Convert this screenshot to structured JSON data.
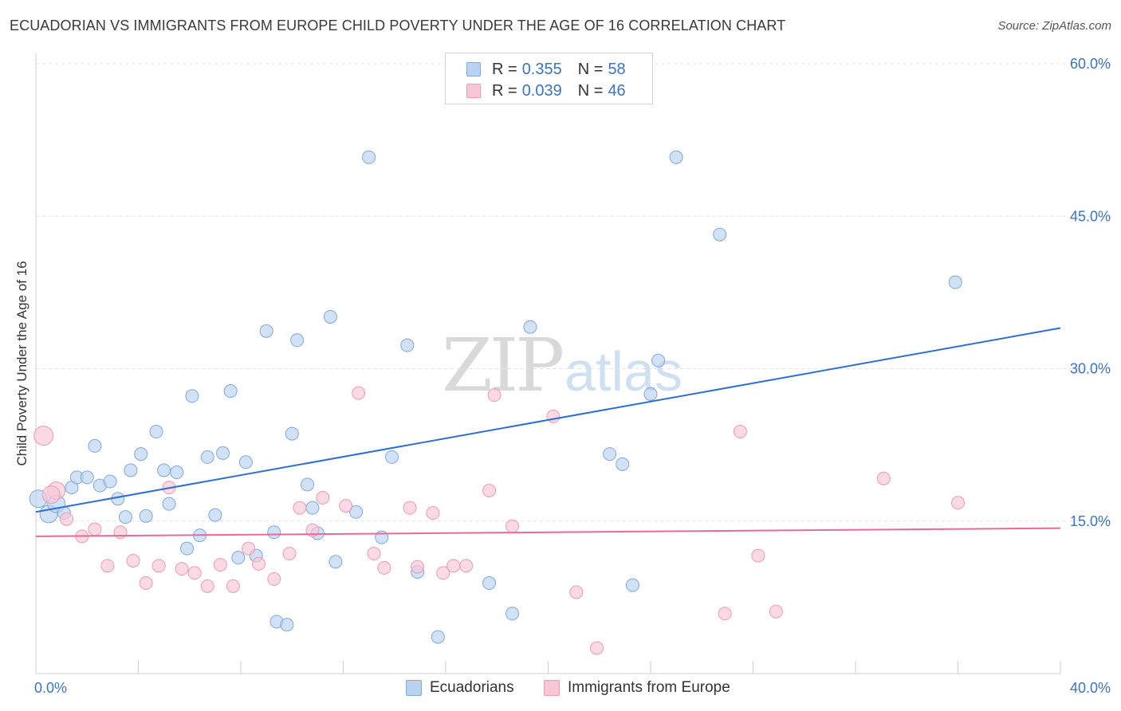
{
  "title": "ECUADORIAN VS IMMIGRANTS FROM EUROPE CHILD POVERTY UNDER THE AGE OF 16 CORRELATION CHART",
  "source": "Source: ZipAtlas.com",
  "watermark": {
    "part1": "ZIP",
    "part2": "atlas"
  },
  "legend": {
    "r_label": "R =",
    "n_label": "N =",
    "series": [
      {
        "r": "0.355",
        "n": "58"
      },
      {
        "r": "0.039",
        "n": "46"
      }
    ]
  },
  "colors": {
    "blue_fill": "#b9d3f3",
    "blue_stroke": "#7fa8dd",
    "blue_line": "#2f6fce",
    "pink_fill": "#f9c6d6",
    "pink_stroke": "#ee9ab4",
    "pink_line": "#e76b98",
    "tick_label": "#3b73c7",
    "grid": "#e2e2e2"
  },
  "chart_data": {
    "type": "scatter",
    "title": "ECUADORIAN VS IMMIGRANTS FROM EUROPE CHILD POVERTY UNDER THE AGE OF 16 CORRELATION CHART",
    "xlabel": "",
    "ylabel": "Child Poverty Under the Age of 16",
    "xlim": [
      0,
      40
    ],
    "ylim": [
      0,
      60
    ],
    "x_tick_labels": [
      "0.0%",
      "40.0%"
    ],
    "y_ticks": [
      15,
      30,
      45,
      60
    ],
    "y_tick_labels": [
      "15.0%",
      "30.0%",
      "45.0%",
      "60.0%"
    ],
    "grid": true,
    "legend_position": "bottom",
    "series": [
      {
        "name": "Ecuadorians",
        "r": 0.355,
        "n": 58,
        "trend": [
          [
            0,
            15.9
          ],
          [
            40,
            34.0
          ]
        ],
        "points": [
          [
            0.1,
            17.2
          ],
          [
            0.5,
            15.7
          ],
          [
            0.8,
            16.7
          ],
          [
            1.1,
            15.8
          ],
          [
            1.4,
            18.3
          ],
          [
            1.6,
            19.3
          ],
          [
            2.0,
            19.3
          ],
          [
            2.3,
            22.4
          ],
          [
            2.5,
            18.5
          ],
          [
            2.9,
            18.9
          ],
          [
            3.2,
            17.2
          ],
          [
            3.5,
            15.4
          ],
          [
            3.7,
            20.0
          ],
          [
            4.1,
            21.6
          ],
          [
            4.3,
            15.5
          ],
          [
            4.7,
            23.8
          ],
          [
            5.0,
            20.0
          ],
          [
            5.2,
            16.7
          ],
          [
            5.5,
            19.8
          ],
          [
            5.9,
            12.3
          ],
          [
            6.1,
            27.3
          ],
          [
            6.4,
            13.6
          ],
          [
            6.7,
            21.3
          ],
          [
            7.0,
            15.6
          ],
          [
            7.3,
            21.7
          ],
          [
            7.6,
            27.8
          ],
          [
            7.9,
            11.4
          ],
          [
            8.2,
            20.8
          ],
          [
            8.6,
            11.6
          ],
          [
            9.0,
            33.7
          ],
          [
            9.3,
            13.9
          ],
          [
            9.4,
            5.1
          ],
          [
            9.8,
            4.8
          ],
          [
            10.0,
            23.6
          ],
          [
            10.2,
            32.8
          ],
          [
            10.6,
            18.6
          ],
          [
            10.8,
            16.3
          ],
          [
            11.0,
            13.8
          ],
          [
            11.5,
            35.1
          ],
          [
            11.7,
            11.0
          ],
          [
            12.5,
            15.9
          ],
          [
            13.0,
            50.8
          ],
          [
            13.5,
            13.4
          ],
          [
            13.9,
            21.3
          ],
          [
            14.5,
            32.3
          ],
          [
            14.9,
            10.0
          ],
          [
            15.7,
            3.6
          ],
          [
            17.7,
            8.9
          ],
          [
            18.6,
            5.9
          ],
          [
            19.3,
            34.1
          ],
          [
            22.4,
            21.6
          ],
          [
            22.9,
            20.6
          ],
          [
            23.3,
            8.7
          ],
          [
            24.0,
            27.5
          ],
          [
            24.3,
            30.8
          ],
          [
            25.0,
            50.8
          ],
          [
            26.7,
            43.2
          ],
          [
            35.9,
            38.5
          ]
        ]
      },
      {
        "name": "Immigrants from Europe",
        "r": 0.039,
        "n": 46,
        "trend": [
          [
            0,
            13.5
          ],
          [
            40,
            14.3
          ]
        ],
        "points": [
          [
            0.3,
            23.4
          ],
          [
            0.8,
            18.0
          ],
          [
            1.2,
            15.2
          ],
          [
            1.8,
            13.5
          ],
          [
            2.3,
            14.2
          ],
          [
            2.8,
            10.6
          ],
          [
            3.3,
            13.9
          ],
          [
            3.8,
            11.1
          ],
          [
            4.3,
            8.9
          ],
          [
            4.8,
            10.6
          ],
          [
            5.2,
            18.3
          ],
          [
            5.7,
            10.3
          ],
          [
            6.2,
            9.9
          ],
          [
            6.7,
            8.6
          ],
          [
            7.2,
            10.7
          ],
          [
            7.7,
            8.6
          ],
          [
            8.3,
            12.3
          ],
          [
            8.7,
            10.8
          ],
          [
            9.3,
            9.3
          ],
          [
            9.9,
            11.8
          ],
          [
            10.3,
            16.3
          ],
          [
            10.8,
            14.1
          ],
          [
            11.2,
            17.3
          ],
          [
            12.1,
            16.5
          ],
          [
            12.6,
            27.6
          ],
          [
            13.2,
            11.8
          ],
          [
            13.6,
            10.4
          ],
          [
            14.6,
            16.3
          ],
          [
            14.9,
            10.5
          ],
          [
            15.5,
            15.8
          ],
          [
            15.9,
            9.9
          ],
          [
            16.3,
            10.6
          ],
          [
            16.8,
            10.6
          ],
          [
            17.7,
            18.0
          ],
          [
            17.9,
            27.4
          ],
          [
            18.6,
            14.5
          ],
          [
            20.2,
            25.3
          ],
          [
            21.1,
            8.0
          ],
          [
            21.9,
            2.5
          ],
          [
            26.9,
            5.9
          ],
          [
            27.5,
            23.8
          ],
          [
            28.2,
            11.6
          ],
          [
            28.9,
            6.1
          ],
          [
            33.1,
            19.2
          ],
          [
            36.0,
            16.8
          ],
          [
            0.6,
            17.6
          ]
        ]
      }
    ]
  }
}
